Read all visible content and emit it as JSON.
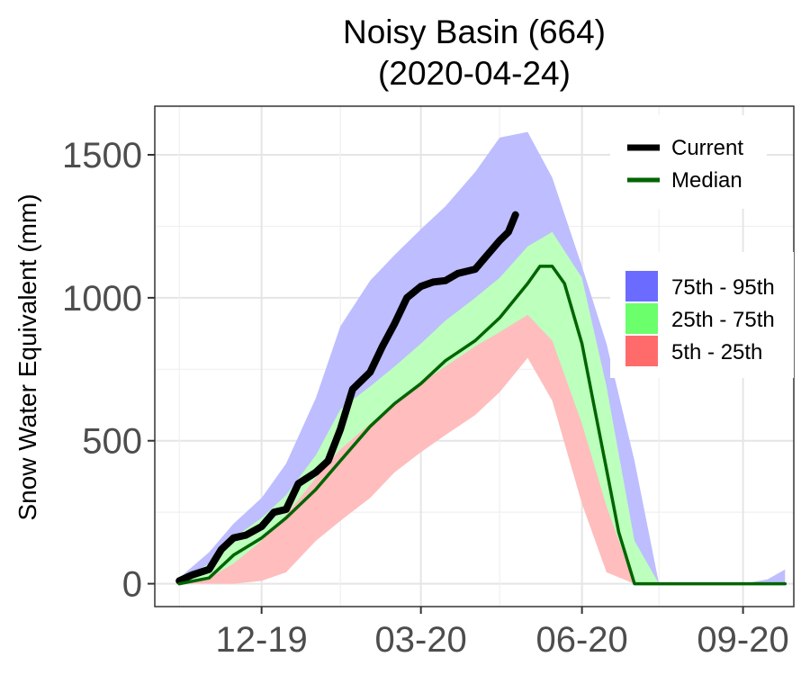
{
  "chart_data": {
    "type": "area",
    "title": "Noisy Basin (664)",
    "subtitle": "(2020-04-24)",
    "xlabel": "",
    "ylabel": "Snow Water Equivalent (mm)",
    "x_axis": {
      "type": "date",
      "range": [
        "2019-10-01",
        "2020-09-30"
      ]
    },
    "ylim": [
      -80,
      1670
    ],
    "y_ticks": [
      0,
      500,
      1000,
      1500
    ],
    "x_ticks": [
      {
        "label": "12-19",
        "date": "2019-12-01"
      },
      {
        "label": "03-20",
        "date": "2020-03-01"
      },
      {
        "label": "06-20",
        "date": "2020-06-01"
      },
      {
        "label": "09-20",
        "date": "2020-09-01"
      }
    ],
    "grid": true,
    "legend_lines": {
      "position": "top-right",
      "entries": [
        {
          "name": "Current",
          "color": "#000000"
        },
        {
          "name": "Median",
          "color": "#006400"
        }
      ]
    },
    "legend_bands": {
      "position": "right",
      "entries": [
        {
          "name": "75th - 95th",
          "color": "#6b6bff"
        },
        {
          "name": "25th - 75th",
          "color": "#6bff6b"
        },
        {
          "name": "5th - 25th",
          "color": "#ff6b6b"
        }
      ]
    },
    "bands": [
      {
        "name": "75th - 95th",
        "color": "#bdbdff",
        "x": [
          "2019-10-15",
          "2019-11-01",
          "2019-11-15",
          "2019-12-01",
          "2019-12-15",
          "2020-01-01",
          "2020-01-15",
          "2020-02-01",
          "2020-02-15",
          "2020-03-01",
          "2020-03-15",
          "2020-04-01",
          "2020-04-15",
          "2020-05-01",
          "2020-05-15",
          "2020-06-01",
          "2020-06-15",
          "2020-07-01",
          "2020-07-15",
          "2020-08-01",
          "2020-08-15",
          "2020-09-01",
          "2020-09-15",
          "2020-09-25"
        ],
        "lower": [
          0,
          20,
          90,
          170,
          280,
          370,
          460,
          540,
          610,
          700,
          780,
          850,
          920,
          960,
          840,
          480,
          180,
          30,
          0,
          0,
          0,
          0,
          0,
          0
        ],
        "upper": [
          20,
          110,
          210,
          300,
          420,
          650,
          900,
          1060,
          1150,
          1240,
          1320,
          1440,
          1560,
          1580,
          1420,
          1110,
          840,
          430,
          0,
          0,
          0,
          0,
          15,
          50
        ]
      },
      {
        "name": "25th - 75th",
        "color": "#bdffbd",
        "x": [
          "2019-10-15",
          "2019-11-01",
          "2019-11-15",
          "2019-12-01",
          "2019-12-15",
          "2020-01-01",
          "2020-01-15",
          "2020-02-01",
          "2020-02-15",
          "2020-03-01",
          "2020-03-15",
          "2020-04-01",
          "2020-04-15",
          "2020-05-01",
          "2020-05-15",
          "2020-06-01",
          "2020-06-15",
          "2020-07-01",
          "2020-07-15"
        ],
        "lower": [
          0,
          15,
          60,
          130,
          210,
          320,
          390,
          470,
          540,
          600,
          660,
          730,
          800,
          840,
          680,
          320,
          80,
          0,
          0
        ],
        "upper": [
          10,
          70,
          160,
          230,
          310,
          450,
          610,
          690,
          760,
          840,
          920,
          1000,
          1070,
          1180,
          1230,
          1070,
          690,
          150,
          0
        ]
      },
      {
        "name": "5th - 25th",
        "color": "#ffbdbd",
        "x": [
          "2019-10-15",
          "2019-11-01",
          "2019-11-15",
          "2019-12-01",
          "2019-12-15",
          "2020-01-01",
          "2020-01-15",
          "2020-02-01",
          "2020-02-15",
          "2020-03-01",
          "2020-03-15",
          "2020-04-01",
          "2020-04-15",
          "2020-05-01",
          "2020-05-15",
          "2020-06-01",
          "2020-06-15",
          "2020-07-01"
        ],
        "lower": [
          0,
          0,
          0,
          10,
          40,
          150,
          220,
          300,
          390,
          460,
          520,
          590,
          670,
          790,
          640,
          280,
          40,
          0
        ],
        "upper": [
          5,
          20,
          70,
          150,
          240,
          370,
          470,
          560,
          630,
          700,
          760,
          830,
          880,
          940,
          850,
          560,
          270,
          0
        ]
      }
    ],
    "series": [
      {
        "name": "Current",
        "color": "#000000",
        "x": [
          "2019-10-15",
          "2019-10-22",
          "2019-11-01",
          "2019-11-08",
          "2019-11-15",
          "2019-11-22",
          "2019-12-01",
          "2019-12-08",
          "2019-12-15",
          "2019-12-22",
          "2020-01-01",
          "2020-01-08",
          "2020-01-15",
          "2020-01-22",
          "2020-02-01",
          "2020-02-08",
          "2020-02-15",
          "2020-02-22",
          "2020-03-01",
          "2020-03-08",
          "2020-03-15",
          "2020-03-22",
          "2020-04-01",
          "2020-04-08",
          "2020-04-15",
          "2020-04-20",
          "2020-04-24"
        ],
        "values": [
          10,
          30,
          50,
          120,
          160,
          170,
          200,
          250,
          260,
          350,
          390,
          430,
          540,
          680,
          740,
          830,
          910,
          1000,
          1040,
          1055,
          1060,
          1085,
          1100,
          1150,
          1200,
          1230,
          1290
        ]
      },
      {
        "name": "Median",
        "color": "#006400",
        "x": [
          "2019-10-15",
          "2019-11-01",
          "2019-11-15",
          "2019-12-01",
          "2019-12-15",
          "2020-01-01",
          "2020-01-15",
          "2020-02-01",
          "2020-02-15",
          "2020-03-01",
          "2020-03-15",
          "2020-04-01",
          "2020-04-15",
          "2020-05-01",
          "2020-05-08",
          "2020-05-15",
          "2020-05-22",
          "2020-06-01",
          "2020-06-08",
          "2020-06-15",
          "2020-06-22",
          "2020-07-01",
          "2020-09-25"
        ],
        "values": [
          0,
          20,
          100,
          160,
          230,
          330,
          430,
          550,
          630,
          700,
          780,
          850,
          930,
          1050,
          1110,
          1110,
          1050,
          840,
          620,
          400,
          180,
          0,
          0
        ]
      }
    ]
  }
}
